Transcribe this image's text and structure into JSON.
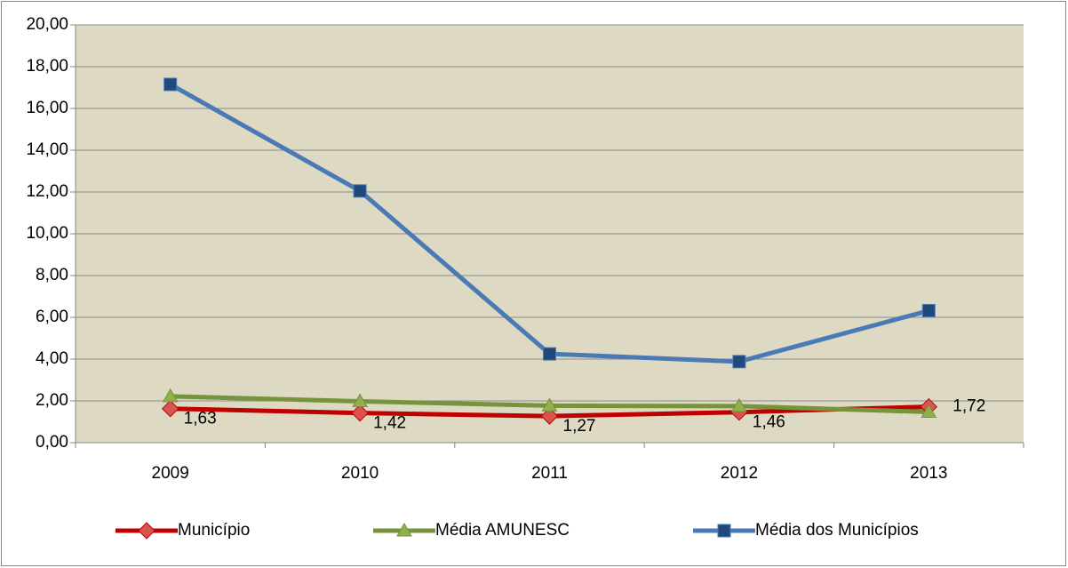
{
  "chart_data": {
    "type": "line",
    "categories": [
      "2009",
      "2010",
      "2011",
      "2012",
      "2013"
    ],
    "series": [
      {
        "name": "Município",
        "color": "#c00000",
        "marker": "diamond",
        "marker_color": "#d9534f",
        "values": [
          1.63,
          1.42,
          1.27,
          1.46,
          1.72
        ],
        "value_labels": [
          "1,63",
          "1,42",
          "1,27",
          "1,46",
          "1,72"
        ]
      },
      {
        "name": "Média AMUNESC",
        "color": "#77933c",
        "marker": "triangle",
        "marker_color": "#8fb04a",
        "values": [
          2.22,
          1.98,
          1.77,
          1.75,
          1.47
        ]
      },
      {
        "name": "Média dos Municípios",
        "color": "#4a7ab5",
        "marker": "square",
        "marker_color": "#1f497d",
        "values": [
          17.15,
          12.05,
          4.25,
          3.88,
          6.32
        ]
      }
    ],
    "ylim": [
      0,
      20
    ],
    "yticks": [
      {
        "value": 0,
        "label": "0,00"
      },
      {
        "value": 2,
        "label": "2,00"
      },
      {
        "value": 4,
        "label": "4,00"
      },
      {
        "value": 6,
        "label": "6,00"
      },
      {
        "value": 8,
        "label": "8,00"
      },
      {
        "value": 10,
        "label": "10,00"
      },
      {
        "value": 12,
        "label": "12,00"
      },
      {
        "value": 14,
        "label": "14,00"
      },
      {
        "value": 16,
        "label": "16,00"
      },
      {
        "value": 18,
        "label": "18,00"
      },
      {
        "value": 20,
        "label": "20,00"
      }
    ],
    "grid": true,
    "plot_background": "#ddd9c3",
    "legend": "bottom"
  }
}
